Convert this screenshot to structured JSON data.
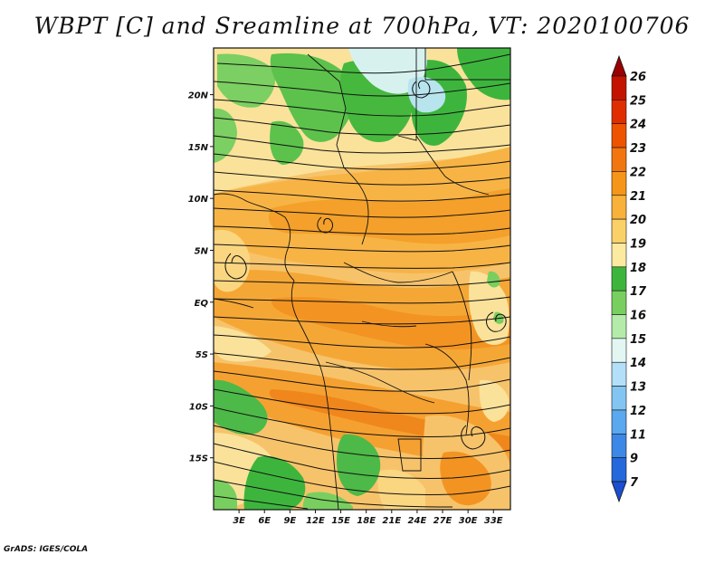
{
  "title": "WBPT [C] and Sreamline at 700hPa, VT: 2020100706",
  "footer": "GrADS: IGES/COLA",
  "map": {
    "lon_range": [
      0,
      35
    ],
    "lat_range": [
      -20,
      24.5
    ],
    "lon_ticks": [
      "3E",
      "6E",
      "9E",
      "12E",
      "15E",
      "18E",
      "21E",
      "24E",
      "27E",
      "30E",
      "33E"
    ],
    "lat_ticks": [
      "20N",
      "15N",
      "10N",
      "5N",
      "EQ",
      "5S",
      "10S",
      "15S"
    ],
    "field_range_note": "wet-bulb potential temperature mostly 17-23 C"
  },
  "colorbar": {
    "labels": [
      "26",
      "25",
      "24",
      "23",
      "22",
      "21",
      "20",
      "19",
      "18",
      "17",
      "16",
      "15",
      "14",
      "13",
      "12",
      "11",
      "9",
      "7"
    ],
    "colors": [
      "#9b0000",
      "#c31300",
      "#e02d00",
      "#ee5300",
      "#f2760f",
      "#f5951a",
      "#f8b13a",
      "#fad068",
      "#fbeaa0",
      "#3db53d",
      "#78cf5f",
      "#b4ebaa",
      "#e2f7f2",
      "#b3e0f8",
      "#82c5f3",
      "#5aa8ee",
      "#3d88e6",
      "#2468dc",
      "#1c4fcf"
    ]
  }
}
